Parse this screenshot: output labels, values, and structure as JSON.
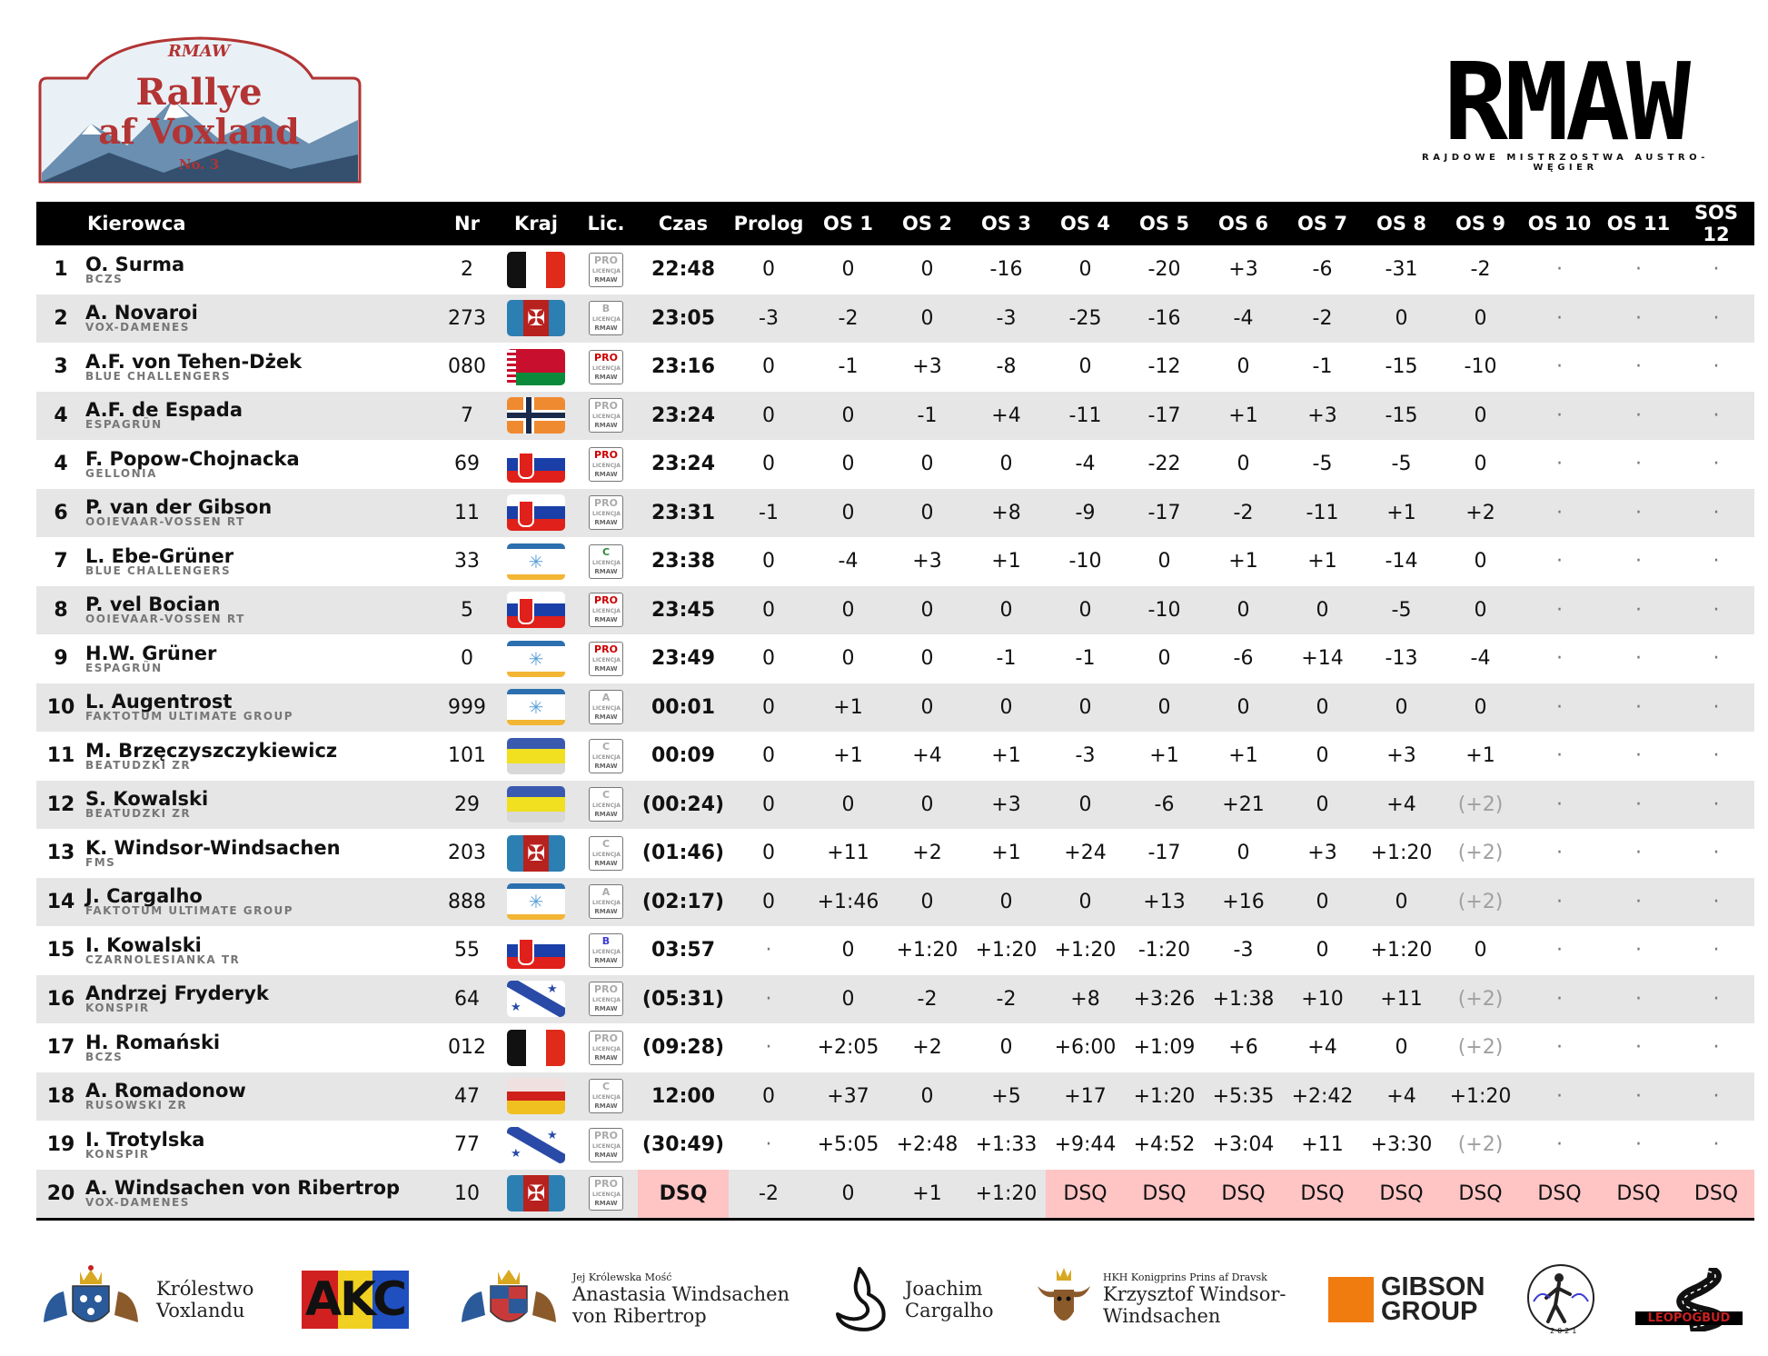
{
  "rally_logo": {
    "top_text": "RMAW",
    "line1": "Rallye",
    "line2": "af Voxland",
    "line3": "No. 3"
  },
  "brand_logo": {
    "title": "RMAW",
    "subtitle": "RAJDOWE MISTRZOSTWA AUSTRO-WĘGIER"
  },
  "headers": [
    "",
    "Kierowca",
    "Nr",
    "Kraj",
    "Lic.",
    "Czas",
    "Prolog",
    "OS 1",
    "OS 2",
    "OS 3",
    "OS 4",
    "OS 5",
    "OS 6",
    "OS 7",
    "OS 8",
    "OS 9",
    "OS 10",
    "OS 11",
    "SOS 12"
  ],
  "rows": [
    {
      "pos": "1",
      "name": "O. Surma",
      "team": "BCZS",
      "nr": "2",
      "flag": "blackred",
      "lic": "PRO",
      "licColor": "#aaa",
      "time": "22:48",
      "stages": [
        "0",
        "0",
        "0",
        "-16",
        "0",
        "-20",
        "+3",
        "-6",
        "-31",
        "-2",
        "·",
        "·",
        "·"
      ]
    },
    {
      "pos": "2",
      "name": "A. Novaroi",
      "team": "VOX-DAMENES",
      "nr": "273",
      "flag": "cross",
      "lic": "B",
      "licColor": "#aaa",
      "time": "23:05",
      "stages": [
        "-3",
        "-2",
        "0",
        "-3",
        "-25",
        "-16",
        "-4",
        "-2",
        "0",
        "0",
        "·",
        "·",
        "·"
      ]
    },
    {
      "pos": "3",
      "name": "A.F. von Tehen-Dżek",
      "team": "BLUE CHALLENGERS",
      "nr": "080",
      "flag": "belarus",
      "lic": "PRO",
      "licColor": "#c00",
      "time": "23:16",
      "stages": [
        "0",
        "-1",
        "+3",
        "-8",
        "0",
        "-12",
        "0",
        "-1",
        "-15",
        "-10",
        "·",
        "·",
        "·"
      ]
    },
    {
      "pos": "4",
      "name": "A.F. de Espada",
      "team": "ESPAGRÜN",
      "nr": "7",
      "flag": "nordic",
      "lic": "PRO",
      "licColor": "#aaa",
      "time": "23:24",
      "stages": [
        "0",
        "0",
        "-1",
        "+4",
        "-11",
        "-17",
        "+1",
        "+3",
        "-15",
        "0",
        "·",
        "·",
        "·"
      ]
    },
    {
      "pos": "4",
      "name": "F. Popow-Chojnacka",
      "team": "GELLONIA",
      "nr": "69",
      "flag": "slovak",
      "lic": "PRO",
      "licColor": "#c00",
      "time": "23:24",
      "stages": [
        "0",
        "0",
        "0",
        "0",
        "-4",
        "-22",
        "0",
        "-5",
        "-5",
        "0",
        "·",
        "·",
        "·"
      ]
    },
    {
      "pos": "6",
      "name": "P. van der Gibson",
      "team": "OOIEVAAR-VOSSEN RT",
      "nr": "11",
      "flag": "slovak",
      "lic": "PRO",
      "licColor": "#aaa",
      "time": "23:31",
      "stages": [
        "-1",
        "0",
        "0",
        "+8",
        "-9",
        "-17",
        "-2",
        "-11",
        "+1",
        "+2",
        "·",
        "·",
        "·"
      ]
    },
    {
      "pos": "7",
      "name": "L. Ebe-Grüner",
      "team": "BLUE CHALLENGERS",
      "nr": "33",
      "flag": "star",
      "lic": "C",
      "licColor": "#2a8a3a",
      "time": "23:38",
      "stages": [
        "0",
        "-4",
        "+3",
        "+1",
        "-10",
        "0",
        "+1",
        "+1",
        "-14",
        "0",
        "·",
        "·",
        "·"
      ]
    },
    {
      "pos": "8",
      "name": "P. vel Bocian",
      "team": "OOIEVAAR-VOSSEN RT",
      "nr": "5",
      "flag": "slovak",
      "lic": "PRO",
      "licColor": "#c00",
      "time": "23:45",
      "stages": [
        "0",
        "0",
        "0",
        "0",
        "0",
        "-10",
        "0",
        "0",
        "-5",
        "0",
        "·",
        "·",
        "·"
      ]
    },
    {
      "pos": "9",
      "name": "H.W. Grüner",
      "team": "ESPAGRÜN",
      "nr": "0",
      "flag": "star",
      "lic": "PRO",
      "licColor": "#c00",
      "time": "23:49",
      "stages": [
        "0",
        "0",
        "0",
        "-1",
        "-1",
        "0",
        "-6",
        "+14",
        "-13",
        "-4",
        "·",
        "·",
        "·"
      ]
    },
    {
      "pos": "10",
      "name": "L. Augentrost",
      "team": "FAKTOTUM ULTIMATE GROUP",
      "nr": "999",
      "flag": "star",
      "lic": "A",
      "licColor": "#aaa",
      "time": "00:01",
      "stages": [
        "0",
        "+1",
        "0",
        "0",
        "0",
        "0",
        "0",
        "0",
        "0",
        "0",
        "·",
        "·",
        "·"
      ]
    },
    {
      "pos": "11",
      "name": "M. Brzęczyszczykiewicz",
      "team": "BEATUDZKI ZR",
      "nr": "101",
      "flag": "bluyel",
      "lic": "C",
      "licColor": "#aaa",
      "time": "00:09",
      "stages": [
        "0",
        "+1",
        "+4",
        "+1",
        "-3",
        "+1",
        "+1",
        "0",
        "+3",
        "+1",
        "·",
        "·",
        "·"
      ]
    },
    {
      "pos": "12",
      "name": "S. Kowalski",
      "team": "BEATUDZKI ZR",
      "nr": "29",
      "flag": "bluyel",
      "lic": "C",
      "licColor": "#aaa",
      "time": "(00:24)",
      "stages": [
        "0",
        "0",
        "0",
        "+3",
        "0",
        "-6",
        "+21",
        "0",
        "+4",
        "(+2)",
        "·",
        "·",
        "·"
      ]
    },
    {
      "pos": "13",
      "name": "K. Windsor-Windsachen",
      "team": "FMS",
      "nr": "203",
      "flag": "cross",
      "lic": "C",
      "licColor": "#aaa",
      "time": "(01:46)",
      "stages": [
        "0",
        "+11",
        "+2",
        "+1",
        "+24",
        "-17",
        "0",
        "+3",
        "+1:20",
        "(+2)",
        "·",
        "·",
        "·"
      ]
    },
    {
      "pos": "14",
      "name": "J. Cargalho",
      "team": "FAKTOTUM ULTIMATE GROUP",
      "nr": "888",
      "flag": "star",
      "lic": "A",
      "licColor": "#aaa",
      "time": "(02:17)",
      "stages": [
        "0",
        "+1:46",
        "0",
        "0",
        "0",
        "+13",
        "+16",
        "0",
        "0",
        "(+2)",
        "·",
        "·",
        "·"
      ]
    },
    {
      "pos": "15",
      "name": "I. Kowalski",
      "team": "CZARNOLESIANKA TR",
      "nr": "55",
      "flag": "slovak",
      "lic": "B",
      "licColor": "#3b3bd0",
      "time": "03:57",
      "stages": [
        "·",
        "0",
        "+1:20",
        "+1:20",
        "+1:20",
        "-1:20",
        "-3",
        "0",
        "+1:20",
        "0",
        "·",
        "·",
        "·"
      ]
    },
    {
      "pos": "16",
      "name": "Andrzej Fryderyk",
      "team": "KONSPIR",
      "nr": "64",
      "flag": "diag",
      "lic": "PRO",
      "licColor": "#aaa",
      "time": "(05:31)",
      "stages": [
        "·",
        "0",
        "-2",
        "-2",
        "+8",
        "+3:26",
        "+1:38",
        "+10",
        "+11",
        "(+2)",
        "·",
        "·",
        "·"
      ]
    },
    {
      "pos": "17",
      "name": "H. Romański",
      "team": "BCZS",
      "nr": "012",
      "flag": "blackred",
      "lic": "PRO",
      "licColor": "#aaa",
      "time": "(09:28)",
      "stages": [
        "·",
        "+2:05",
        "+2",
        "0",
        "+6:00",
        "+1:09",
        "+6",
        "+4",
        "0",
        "(+2)",
        "·",
        "·",
        "·"
      ]
    },
    {
      "pos": "18",
      "name": "A. Romadonow",
      "team": "RUSOWSKI ZR",
      "nr": "47",
      "flag": "redyel",
      "lic": "C",
      "licColor": "#aaa",
      "time": "12:00",
      "stages": [
        "0",
        "+37",
        "0",
        "+5",
        "+17",
        "+1:20",
        "+5:35",
        "+2:42",
        "+4",
        "+1:20",
        "·",
        "·",
        "·"
      ]
    },
    {
      "pos": "19",
      "name": "I. Trotylska",
      "team": "KONSPIR",
      "nr": "77",
      "flag": "diag",
      "lic": "PRO",
      "licColor": "#aaa",
      "time": "(30:49)",
      "stages": [
        "·",
        "+5:05",
        "+2:48",
        "+1:33",
        "+9:44",
        "+4:52",
        "+3:04",
        "+11",
        "+3:30",
        "(+2)",
        "·",
        "·",
        "·"
      ]
    },
    {
      "pos": "20",
      "name": "A. Windsachen von Ribertrop",
      "team": "VOX-DAMENES",
      "nr": "10",
      "flag": "cross",
      "lic": "PRO",
      "licColor": "#aaa",
      "time": "DSQ",
      "stages": [
        "-2",
        "0",
        "+1",
        "+1:20",
        "DSQ",
        "DSQ",
        "DSQ",
        "DSQ",
        "DSQ",
        "DSQ",
        "DSQ",
        "DSQ",
        "DSQ"
      ]
    }
  ],
  "sponsors": {
    "s1": [
      "Królestwo",
      "Voxlandu"
    ],
    "s2": "AKC",
    "s3_small": "Jej Królewska Mość",
    "s3": [
      "Anastasia Windsachen",
      "von Ribertrop"
    ],
    "s4": [
      "Joachim",
      "Cargalho"
    ],
    "s5_small": "HKH Konigprins Prins af Dravsk",
    "s5": [
      "Krzysztof Windsor-",
      "Windsachen"
    ],
    "s6": [
      "GIBSON",
      "GROUP"
    ],
    "s7": "2021",
    "s8": "LEOPOGBUD"
  }
}
